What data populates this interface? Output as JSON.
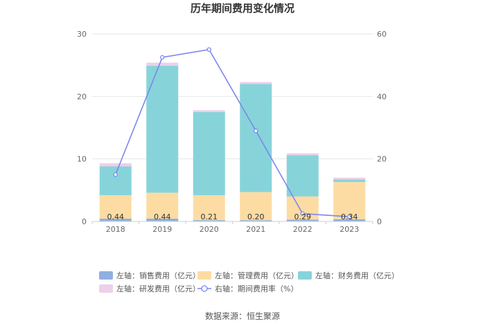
{
  "chart_data": {
    "type": "bar",
    "title": "历年期间费用变化情况",
    "categories": [
      "2018",
      "2019",
      "2020",
      "2021",
      "2022",
      "2023"
    ],
    "stacked": true,
    "series": [
      {
        "name": "左轴：销售费用（亿元）",
        "axis": "left",
        "color": "#8fb0e0",
        "values": [
          0.44,
          0.44,
          0.21,
          0.2,
          0.29,
          0.34
        ]
      },
      {
        "name": "左轴：管理费用（亿元）",
        "axis": "left",
        "color": "#fddca3",
        "values": [
          3.76,
          4.16,
          3.99,
          4.5,
          3.71,
          5.96
        ]
      },
      {
        "name": "左轴：财务费用（亿元）",
        "axis": "left",
        "color": "#86d4da",
        "values": [
          4.6,
          20.3,
          13.3,
          17.3,
          6.6,
          0.4
        ]
      },
      {
        "name": "左轴：研发费用（亿元）",
        "axis": "left",
        "color": "#edd0ea",
        "values": [
          0.5,
          0.5,
          0.3,
          0.3,
          0.3,
          0.3
        ]
      },
      {
        "name": "右轴：期间费用率（%）",
        "axis": "right",
        "type": "line",
        "color": "#7b86ee",
        "values": [
          15.0,
          52.5,
          55.0,
          29.0,
          2.5,
          1.5
        ]
      }
    ],
    "data_labels": [
      "0.44",
      "0.44",
      "0.21",
      "0.20",
      "0.29",
      "0.34"
    ],
    "y_left": {
      "ylim": [
        0,
        30
      ],
      "ticks": [
        "0",
        "10",
        "20",
        "30"
      ]
    },
    "y_right": {
      "ylim": [
        0,
        60
      ],
      "ticks": [
        "0",
        "20",
        "40",
        "60"
      ]
    },
    "grid": true,
    "legend_position": "bottom"
  },
  "source": "数据来源：恒生聚源"
}
